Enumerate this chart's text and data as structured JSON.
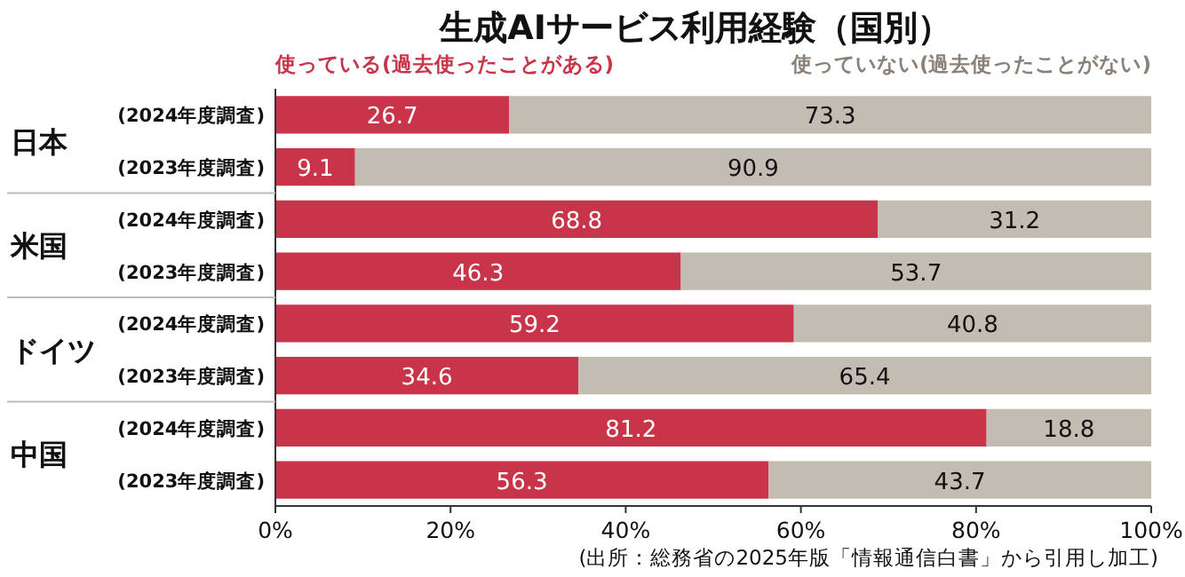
{
  "chart_data": {
    "type": "bar",
    "orientation": "horizontal",
    "stacked": true,
    "title": "生成AIサービス利用経験（国別）",
    "categories": [
      "(2024年度調査)",
      "(2023年度調査)",
      "(2024年度調査)",
      "(2023年度調査)",
      "(2024年度調査)",
      "(2023年度調査)",
      "(2024年度調査)",
      "(2023年度調査)"
    ],
    "series": [
      {
        "name": "使っている(過去使ったことがある)",
        "color": "#c8354a",
        "values": [
          26.7,
          9.1,
          68.8,
          46.3,
          59.2,
          34.6,
          81.2,
          56.3
        ]
      },
      {
        "name": "使っていない(過去使ったことがない)",
        "color": "#c3bcb2",
        "values": [
          73.3,
          90.9,
          31.2,
          53.7,
          40.8,
          65.4,
          18.8,
          43.7
        ]
      }
    ],
    "xlim": [
      0,
      100
    ],
    "xticks": [
      {
        "value": 0,
        "label": "0%"
      },
      {
        "value": 20,
        "label": "20%"
      },
      {
        "value": 40,
        "label": "40%"
      },
      {
        "value": 60,
        "label": "60%"
      },
      {
        "value": 80,
        "label": "80%"
      },
      {
        "value": 100,
        "label": "100%"
      }
    ],
    "data_labels": true,
    "legend": "top",
    "grid": false,
    "annotations": [
      "日本",
      "米国",
      "ドイツ",
      "中国",
      "(出所：総務省の2025年版「情報通信白書」から引用し加工)"
    ]
  }
}
